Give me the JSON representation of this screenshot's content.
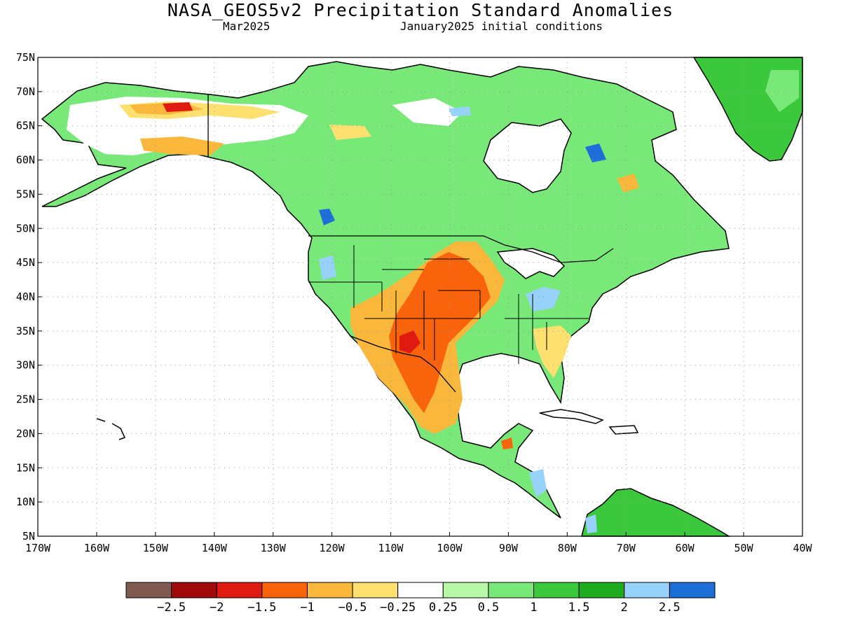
{
  "title": "NASA_GEOS5v2 Precipitation Standard Anomalies",
  "subtitle_left": "Mar2025",
  "subtitle_right": "January2025 initial conditions",
  "lat_labels": [
    "75N",
    "70N",
    "65N",
    "60N",
    "55N",
    "50N",
    "45N",
    "40N",
    "35N",
    "30N",
    "25N",
    "20N",
    "15N",
    "10N",
    "5N"
  ],
  "lon_labels": [
    "170W",
    "160W",
    "150W",
    "140W",
    "130W",
    "120W",
    "110W",
    "100W",
    "90W",
    "80W",
    "70W",
    "60W",
    "50W",
    "40W"
  ],
  "colorbar": {
    "colors": [
      "#7f5a50",
      "#a10a0a",
      "#df1a10",
      "#f9630c",
      "#f9b83c",
      "#fde070",
      "#ffffff",
      "#b8f6a8",
      "#78e878",
      "#3cc83c",
      "#1fab1f",
      "#96d2fa",
      "#1e6ed7"
    ],
    "labels": [
      "−2.5",
      "−2",
      "−1.5",
      "−1",
      "−0.5",
      "−0.25",
      "0.25",
      "0.5",
      "1",
      "1.5",
      "2",
      "2.5"
    ]
  },
  "map": {
    "ocean_color": "#ffffff",
    "outline_color": "#000000",
    "grid": "dotted"
  }
}
